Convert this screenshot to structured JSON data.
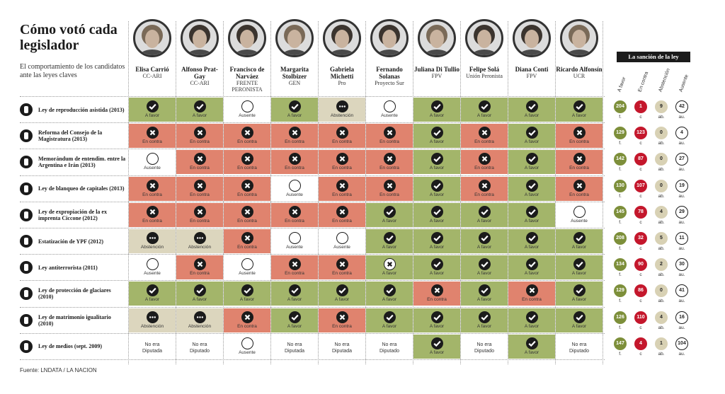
{
  "title": "Cómo votó cada legislador",
  "subtitle": "El comportamiento de los candidatos ante las leyes claves",
  "source": "Fuente: LNDATA / LA NACION",
  "sanction_title": "La sanción de la ley",
  "count_headers": {
    "favor": "A favor",
    "contra": "En contra",
    "abst": "Abstención",
    "aus": "Ausente"
  },
  "count_suffix": {
    "favor": "f.",
    "contra": "c",
    "abst": "ab.",
    "aus": "au."
  },
  "vote_labels": {
    "favor": "A favor",
    "contra": "En contra",
    "abst": "Abstención",
    "aus": "Ausente",
    "noera1": "No era",
    "noera_diputada": "Diputada",
    "noera_diputado": "Diputado"
  },
  "colors": {
    "favor": "#a3b56a",
    "contra": "#e0836e",
    "abst": "#dcd6be",
    "count_favor": "#7d8f3a",
    "count_contra": "#c4172c",
    "count_abst": "#d8d1b4",
    "icon": "#1b1b1b"
  },
  "legislators": [
    {
      "name": "Elisa Carrió",
      "party": "CC-ARI"
    },
    {
      "name": "Alfonso Prat-Gay",
      "party": "CC-ARI"
    },
    {
      "name": "Francisco de Narváez",
      "party": "FRENTE PERONISTA"
    },
    {
      "name": "Margarita Stolbizer",
      "party": "GEN"
    },
    {
      "name": "Gabriela Michetti",
      "party": "Pro"
    },
    {
      "name": "Fernando Solanas",
      "party": "Proyecto Sur"
    },
    {
      "name": "Juliana Di Tullio",
      "party": "FPV"
    },
    {
      "name": "Felipe Solá",
      "party": "Unión Peronista"
    },
    {
      "name": "Diana Conti",
      "party": "FPV"
    },
    {
      "name": "Ricardo Alfonsín",
      "party": "UCR"
    }
  ],
  "chart_data": {
    "type": "table",
    "title": "Cómo votó cada legislador",
    "columns": [
      "Elisa Carrió",
      "Alfonso Prat-Gay",
      "Francisco de Narváez",
      "Margarita Stolbizer",
      "Gabriela Michetti",
      "Fernando Solanas",
      "Juliana Di Tullio",
      "Felipe Solá",
      "Diana Conti",
      "Ricardo Alfonsín"
    ],
    "laws": [
      {
        "name": "Ley de reproducción asistida (2013)",
        "icon": "person-icon",
        "votes": [
          "favor",
          "favor",
          "aus",
          "favor",
          "abst",
          "aus",
          "favor",
          "favor",
          "favor",
          "favor"
        ],
        "totals": {
          "favor": 204,
          "contra": 1,
          "abst": 9,
          "aus": 42
        }
      },
      {
        "name": "Reforma del Consejo de la Magistratura (2013)",
        "icon": "scales-icon",
        "votes": [
          "contra",
          "contra",
          "contra",
          "contra",
          "contra",
          "contra",
          "favor",
          "contra",
          "favor",
          "contra"
        ],
        "totals": {
          "favor": 129,
          "contra": 123,
          "abst": 0,
          "aus": 4
        }
      },
      {
        "name": "Memorándum de entendim. entre la Argentina e Irán (2013)",
        "icon": "globe-icon",
        "votes": [
          "aus",
          "contra",
          "contra",
          "contra",
          "contra",
          "contra",
          "favor",
          "contra",
          "favor",
          "contra"
        ],
        "totals": {
          "favor": 142,
          "contra": 87,
          "abst": 0,
          "aus": 27
        }
      },
      {
        "name": "Ley de blanqueo de capitales (2013)",
        "icon": "magnifier-icon",
        "votes": [
          "contra",
          "contra",
          "contra",
          "aus",
          "contra",
          "contra",
          "favor",
          "contra",
          "favor",
          "contra"
        ],
        "totals": {
          "favor": 130,
          "contra": 107,
          "abst": 0,
          "aus": 19
        }
      },
      {
        "name": "Ley de expropiación de la ex imprenta Ciccone (2012)",
        "icon": "money-icon",
        "votes": [
          "contra",
          "contra",
          "contra",
          "contra",
          "contra",
          "favor",
          "favor",
          "favor",
          "favor",
          "aus"
        ],
        "totals": {
          "favor": 145,
          "contra": 78,
          "abst": 4,
          "aus": 29
        }
      },
      {
        "name": "Estatización de YPF (2012)",
        "icon": "oil-pump-icon",
        "votes": [
          "abst",
          "abst",
          "contra",
          "aus",
          "aus",
          "favor",
          "favor",
          "favor",
          "favor",
          "favor"
        ],
        "totals": {
          "favor": 208,
          "contra": 32,
          "abst": 5,
          "aus": 11
        }
      },
      {
        "name": "Ley antiterrorista (2011)",
        "icon": "explosion-icon",
        "votes": [
          "aus",
          "contra",
          "aus",
          "contra",
          "contra",
          "contra-w",
          "favor",
          "favor",
          "favor",
          "favor"
        ],
        "totals": {
          "favor": 134,
          "contra": 90,
          "abst": 2,
          "aus": 30
        }
      },
      {
        "name": "Ley de protección de glaciares (2010)",
        "icon": "mountain-icon",
        "votes": [
          "favor",
          "favor",
          "favor",
          "favor",
          "favor",
          "favor",
          "contra",
          "favor",
          "contra",
          "favor"
        ],
        "totals": {
          "favor": 129,
          "contra": 86,
          "abst": 0,
          "aus": 41
        }
      },
      {
        "name": "Ley de matrimonio igualitario (2010)",
        "icon": "couple-icon",
        "votes": [
          "abst",
          "abst",
          "contra",
          "favor",
          "contra",
          "favor",
          "favor",
          "favor",
          "favor",
          "favor"
        ],
        "totals": {
          "favor": 126,
          "contra": 110,
          "abst": 4,
          "aus": 16
        }
      },
      {
        "name": "Ley de medios (sept. 2009)",
        "icon": "media-icon",
        "votes": [
          "noera_diputada",
          "noera_diputado",
          "aus",
          "noera_diputada",
          "noera_diputada",
          "noera_diputado",
          "favor",
          "noera_diputado",
          "favor",
          "noera_diputado"
        ],
        "totals": {
          "favor": 147,
          "contra": 4,
          "abst": 1,
          "aus": 104
        }
      }
    ]
  }
}
